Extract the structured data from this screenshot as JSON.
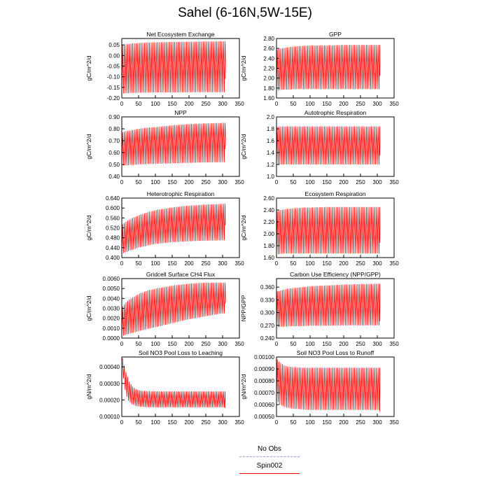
{
  "title": "Sahel (6-16N,5W-15E)",
  "legend": {
    "items": [
      {
        "label": "No Obs",
        "color": "#9999ee",
        "style": "dashed"
      },
      {
        "label": "Spin002",
        "color": "#ff0000",
        "style": "solid"
      }
    ]
  },
  "chart_data": [
    {
      "type": "line",
      "title": "Net Ecosystem Exchange",
      "ylabel": "gC/m^2/d",
      "xlim": [
        0,
        350
      ],
      "xticks": [
        "0",
        "50",
        "100",
        "150",
        "200",
        "250",
        "300",
        "350"
      ],
      "ylim": [
        -0.2,
        0.08
      ],
      "yticks": [
        "-0.20",
        "-0.15",
        "-0.10",
        "-0.05",
        "0.00",
        "0.05"
      ],
      "series": [
        {
          "name": "Spin002",
          "color": "#ff0000",
          "x": [
            0,
            10,
            20,
            30,
            40,
            50,
            75,
            100,
            150,
            200,
            250,
            300,
            308
          ],
          "upper": [
            0.05,
            0.053,
            0.055,
            0.057,
            0.058,
            0.059,
            0.061,
            0.062,
            0.064,
            0.065,
            0.066,
            0.067,
            0.067
          ],
          "lower": [
            -0.18,
            -0.178,
            -0.177,
            -0.176,
            -0.176,
            -0.175,
            -0.175,
            -0.174,
            -0.174,
            -0.173,
            -0.173,
            -0.173,
            -0.173
          ],
          "mid": [
            -0.06,
            -0.058,
            -0.056,
            -0.055,
            -0.054,
            -0.053,
            -0.05,
            -0.048,
            -0.045,
            -0.042,
            -0.04,
            -0.038,
            -0.038
          ],
          "end_value": -0.11
        }
      ]
    },
    {
      "type": "line",
      "title": "GPP",
      "ylabel": "gC/m^2/d",
      "xlim": [
        0,
        350
      ],
      "xticks": [
        "0",
        "50",
        "100",
        "150",
        "200",
        "250",
        "300",
        "350"
      ],
      "ylim": [
        1.6,
        2.8
      ],
      "yticks": [
        "1.60",
        "1.80",
        "2.00",
        "2.20",
        "2.40",
        "2.60",
        "2.80"
      ],
      "series": [
        {
          "name": "Spin002",
          "color": "#ff0000",
          "x": [
            0,
            10,
            20,
            30,
            40,
            50,
            75,
            100,
            150,
            200,
            250,
            300,
            308
          ],
          "upper": [
            2.58,
            2.6,
            2.61,
            2.62,
            2.63,
            2.64,
            2.65,
            2.66,
            2.66,
            2.67,
            2.67,
            2.67,
            2.67
          ],
          "lower": [
            1.75,
            1.76,
            1.77,
            1.77,
            1.77,
            1.78,
            1.78,
            1.78,
            1.78,
            1.78,
            1.78,
            1.78,
            1.78
          ],
          "end_value": 2.05
        }
      ]
    },
    {
      "type": "line",
      "title": "NPP",
      "ylabel": "gC/m^2/d",
      "xlim": [
        0,
        350
      ],
      "xticks": [
        "0",
        "50",
        "100",
        "150",
        "200",
        "250",
        "300",
        "350"
      ],
      "ylim": [
        0.4,
        0.9
      ],
      "yticks": [
        "0.40",
        "0.50",
        "0.60",
        "0.70",
        "0.80",
        "0.90"
      ],
      "series": [
        {
          "name": "Spin002",
          "color": "#ff0000",
          "x": [
            0,
            10,
            20,
            30,
            40,
            50,
            75,
            100,
            150,
            200,
            250,
            300,
            308
          ],
          "upper": [
            0.77,
            0.78,
            0.785,
            0.79,
            0.795,
            0.8,
            0.81,
            0.815,
            0.83,
            0.84,
            0.845,
            0.85,
            0.85
          ],
          "lower": [
            0.49,
            0.492,
            0.494,
            0.496,
            0.498,
            0.5,
            0.503,
            0.506,
            0.51,
            0.514,
            0.517,
            0.52,
            0.52
          ],
          "mid": [
            0.65,
            0.655,
            0.66,
            0.665,
            0.668,
            0.67,
            0.678,
            0.685,
            0.695,
            0.705,
            0.71,
            0.715,
            0.715
          ],
          "end_value": 0.63
        }
      ]
    },
    {
      "type": "line",
      "title": "Autotrophic Respiration",
      "ylabel": "gC/m^2/d",
      "xlim": [
        0,
        350
      ],
      "xticks": [
        "0",
        "50",
        "100",
        "150",
        "200",
        "250",
        "300",
        "350"
      ],
      "ylim": [
        1.0,
        2.0
      ],
      "yticks": [
        "1.0",
        "1.2",
        "1.4",
        "1.6",
        "1.8",
        "2.0"
      ],
      "series": [
        {
          "name": "Spin002",
          "color": "#ff0000",
          "x": [
            0,
            10,
            20,
            30,
            40,
            50,
            75,
            100,
            150,
            200,
            250,
            300,
            308
          ],
          "upper": [
            1.83,
            1.84,
            1.84,
            1.84,
            1.84,
            1.84,
            1.84,
            1.84,
            1.84,
            1.84,
            1.84,
            1.84,
            1.84
          ],
          "lower": [
            1.2,
            1.2,
            1.2,
            1.2,
            1.2,
            1.2,
            1.2,
            1.2,
            1.2,
            1.2,
            1.2,
            1.2,
            1.2
          ],
          "end_value": 1.35
        }
      ]
    },
    {
      "type": "line",
      "title": "Heterotrophic Respiration",
      "ylabel": "gC/m^2/d",
      "xlim": [
        0,
        350
      ],
      "xticks": [
        "0",
        "50",
        "100",
        "150",
        "200",
        "250",
        "300",
        "350"
      ],
      "ylim": [
        0.4,
        0.64
      ],
      "yticks": [
        "0.400",
        "0.440",
        "0.480",
        "0.520",
        "0.560",
        "0.600",
        "0.640"
      ],
      "series": [
        {
          "name": "Spin002",
          "color": "#ff0000",
          "x": [
            0,
            10,
            20,
            30,
            40,
            50,
            75,
            100,
            150,
            200,
            250,
            300,
            308
          ],
          "upper": [
            0.535,
            0.545,
            0.553,
            0.56,
            0.566,
            0.572,
            0.583,
            0.592,
            0.603,
            0.61,
            0.614,
            0.617,
            0.617
          ],
          "lower": [
            0.415,
            0.421,
            0.426,
            0.431,
            0.435,
            0.44,
            0.448,
            0.455,
            0.462,
            0.466,
            0.468,
            0.47,
            0.47
          ],
          "end_value": 0.53
        }
      ]
    },
    {
      "type": "line",
      "title": "Ecosystem Respiration",
      "ylabel": "gC/m^2/d",
      "xlim": [
        0,
        350
      ],
      "xticks": [
        "0",
        "50",
        "100",
        "150",
        "200",
        "250",
        "300",
        "350"
      ],
      "ylim": [
        1.6,
        2.6
      ],
      "yticks": [
        "1.60",
        "1.80",
        "2.00",
        "2.20",
        "2.40",
        "2.60"
      ],
      "series": [
        {
          "name": "Spin002",
          "color": "#ff0000",
          "x": [
            0,
            10,
            20,
            30,
            40,
            50,
            75,
            100,
            150,
            200,
            250,
            300,
            308
          ],
          "upper": [
            2.38,
            2.4,
            2.41,
            2.42,
            2.42,
            2.43,
            2.44,
            2.44,
            2.45,
            2.45,
            2.45,
            2.45,
            2.45
          ],
          "lower": [
            1.65,
            1.66,
            1.67,
            1.67,
            1.67,
            1.67,
            1.67,
            1.67,
            1.67,
            1.67,
            1.67,
            1.67,
            1.67
          ],
          "end_value": 1.85
        }
      ]
    },
    {
      "type": "line",
      "title": "Gridcell Surface CH4 Flux",
      "ylabel": "gC/m^2/d",
      "xlim": [
        0,
        350
      ],
      "xticks": [
        "0",
        "50",
        "100",
        "150",
        "200",
        "250",
        "300",
        "350"
      ],
      "ylim": [
        0.0,
        0.006
      ],
      "yticks": [
        "0.0000",
        "0.0010",
        "0.0020",
        "0.0030",
        "0.0040",
        "0.0050",
        "0.0060"
      ],
      "series": [
        {
          "name": "Spin002",
          "color": "#ff0000",
          "x": [
            0,
            10,
            20,
            30,
            40,
            50,
            75,
            100,
            150,
            200,
            250,
            300,
            308
          ],
          "upper": [
            0.0032,
            0.0036,
            0.0039,
            0.0041,
            0.0043,
            0.0045,
            0.0048,
            0.005,
            0.0053,
            0.0055,
            0.0056,
            0.0056,
            0.0056
          ],
          "lower": [
            0.0002,
            0.0003,
            0.0004,
            0.0005,
            0.0006,
            0.0007,
            0.0009,
            0.0011,
            0.0015,
            0.0019,
            0.0022,
            0.0025,
            0.0025
          ],
          "mid": [
            0.0018,
            0.0021,
            0.0023,
            0.0024,
            0.0025,
            0.0026,
            0.0029,
            0.0031,
            0.0034,
            0.0036,
            0.0037,
            0.0038,
            0.0038
          ],
          "end_value": 0.0035
        }
      ]
    },
    {
      "type": "line",
      "title": "Carbon Use Efficiency (NPP/GPP)",
      "ylabel": "NPP/GPP",
      "xlim": [
        0,
        350
      ],
      "xticks": [
        "0",
        "50",
        "100",
        "150",
        "200",
        "250",
        "300",
        "350"
      ],
      "ylim": [
        0.24,
        0.38
      ],
      "yticks": [
        "0.240",
        "0.270",
        "0.300",
        "0.330",
        "0.360"
      ],
      "series": [
        {
          "name": "Spin002",
          "color": "#ff0000",
          "x": [
            0,
            10,
            20,
            30,
            40,
            50,
            75,
            100,
            150,
            200,
            250,
            300,
            308
          ],
          "upper": [
            0.35,
            0.352,
            0.354,
            0.356,
            0.357,
            0.358,
            0.36,
            0.362,
            0.364,
            0.366,
            0.367,
            0.368,
            0.368
          ],
          "lower": [
            0.265,
            0.266,
            0.267,
            0.267,
            0.268,
            0.268,
            0.268,
            0.269,
            0.269,
            0.27,
            0.27,
            0.27,
            0.27
          ],
          "end_value": 0.28
        }
      ]
    },
    {
      "type": "line",
      "title": "Soil NO3 Pool Loss to Leaching",
      "ylabel": "gN/m^2/d",
      "xlim": [
        0,
        350
      ],
      "xticks": [
        "0",
        "50",
        "100",
        "150",
        "200",
        "250",
        "300",
        "350"
      ],
      "ylim": [
        0.0001,
        0.00046
      ],
      "yticks": [
        "0.00010",
        "0.00020",
        "0.00030",
        "0.00040"
      ],
      "series": [
        {
          "name": "Spin002",
          "color": "#ff0000",
          "x": [
            0,
            5,
            10,
            15,
            20,
            30,
            40,
            50,
            60,
            75,
            100,
            150,
            200,
            250,
            300,
            308
          ],
          "upper": [
            0.00045,
            0.00041,
            0.00037,
            0.00034,
            0.00031,
            0.00028,
            0.000265,
            0.000258,
            0.000255,
            0.000253,
            0.000252,
            0.000252,
            0.000252,
            0.000252,
            0.000252,
            0.000252
          ],
          "lower": [
            0.00045,
            0.00033,
            0.00026,
            0.00022,
            0.000195,
            0.000175,
            0.000165,
            0.00016,
            0.000158,
            0.000156,
            0.000155,
            0.000155,
            0.000155,
            0.000155,
            0.000155,
            0.000155
          ],
          "end_value": 0.00015
        }
      ]
    },
    {
      "type": "line",
      "title": "Soil NO3 Pool Loss to Runoff",
      "ylabel": "gN/m^2/d",
      "xlim": [
        0,
        350
      ],
      "xticks": [
        "0",
        "50",
        "100",
        "150",
        "200",
        "250",
        "300",
        "350"
      ],
      "ylim": [
        0.0005,
        0.001
      ],
      "yticks": [
        "0.00050",
        "0.00060",
        "0.00070",
        "0.00080",
        "0.00090",
        "0.00100"
      ],
      "series": [
        {
          "name": "Spin002",
          "color": "#ff0000",
          "x": [
            0,
            5,
            10,
            20,
            30,
            50,
            75,
            100,
            150,
            200,
            250,
            300,
            308
          ],
          "upper": [
            0.00098,
            0.00096,
            0.00095,
            0.00093,
            0.00092,
            0.000915,
            0.00091,
            0.00091,
            0.00091,
            0.00091,
            0.00091,
            0.00091,
            0.00091
          ],
          "lower": [
            0.00065,
            0.00062,
            0.0006,
            0.000585,
            0.000575,
            0.000565,
            0.00056,
            0.000555,
            0.000555,
            0.000555,
            0.000555,
            0.000555,
            0.000555
          ],
          "end_value": 0.00054
        }
      ]
    }
  ]
}
